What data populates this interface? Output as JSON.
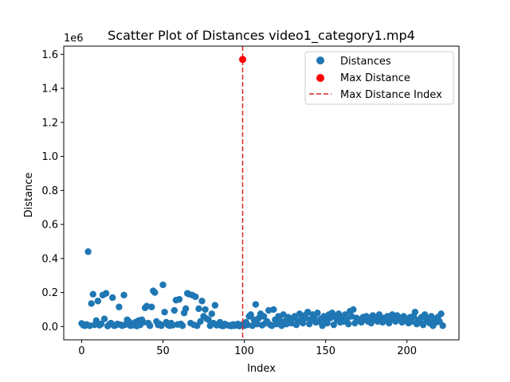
{
  "chart_data": {
    "type": "scatter",
    "title": "Scatter Plot of Distances video1_category1.mp4",
    "xlabel": "Index",
    "ylabel": "Distance",
    "y_offset_label": "1e6",
    "xlim": [
      -11,
      232
    ],
    "ylim": [
      -78000,
      1648000
    ],
    "x_ticks": [
      0,
      50,
      100,
      150,
      200
    ],
    "y_ticks": [
      0,
      200000,
      400000,
      600000,
      800000,
      1000000,
      1200000,
      1400000,
      1600000
    ],
    "x_tick_labels": [
      "0",
      "50",
      "100",
      "150",
      "200"
    ],
    "y_tick_labels": [
      "0.0",
      "0.2",
      "0.4",
      "0.6",
      "0.8",
      "1.0",
      "1.2",
      "1.4",
      "1.6"
    ],
    "grid": false,
    "legend_position": "top-right",
    "legend": [
      "Distances",
      "Max Distance",
      "Max Distance Index"
    ],
    "colors": {
      "distances": "#1f77b4",
      "max": "#ff0000",
      "vline": "#d62728"
    },
    "series": [
      {
        "name": "Distances",
        "points": [
          [
            0,
            18000
          ],
          [
            1,
            8000
          ],
          [
            2,
            5000
          ],
          [
            3,
            12000
          ],
          [
            4,
            440000
          ],
          [
            5,
            5000
          ],
          [
            6,
            135000
          ],
          [
            7,
            190000
          ],
          [
            8,
            10000
          ],
          [
            9,
            35000
          ],
          [
            10,
            150000
          ],
          [
            11,
            8000
          ],
          [
            12,
            15000
          ],
          [
            13,
            185000
          ],
          [
            14,
            45000
          ],
          [
            15,
            195000
          ],
          [
            16,
            3000
          ],
          [
            17,
            12000
          ],
          [
            18,
            20000
          ],
          [
            19,
            170000
          ],
          [
            20,
            5000
          ],
          [
            21,
            8000
          ],
          [
            22,
            15000
          ],
          [
            23,
            115000
          ],
          [
            24,
            10000
          ],
          [
            25,
            5000
          ],
          [
            26,
            185000
          ],
          [
            27,
            12000
          ],
          [
            28,
            40000
          ],
          [
            29,
            30000
          ],
          [
            30,
            5000
          ],
          [
            31,
            15000
          ],
          [
            32,
            8000
          ],
          [
            33,
            25000
          ],
          [
            34,
            3000
          ],
          [
            35,
            35000
          ],
          [
            36,
            10000
          ],
          [
            37,
            40000
          ],
          [
            38,
            25000
          ],
          [
            39,
            110000
          ],
          [
            40,
            120000
          ],
          [
            41,
            20000
          ],
          [
            42,
            5000
          ],
          [
            43,
            115000
          ],
          [
            44,
            210000
          ],
          [
            45,
            200000
          ],
          [
            46,
            30000
          ],
          [
            47,
            10000
          ],
          [
            48,
            15000
          ],
          [
            49,
            5000
          ],
          [
            50,
            245000
          ],
          [
            51,
            85000
          ],
          [
            52,
            25000
          ],
          [
            53,
            10000
          ],
          [
            54,
            5000
          ],
          [
            55,
            20000
          ],
          [
            56,
            8000
          ],
          [
            57,
            95000
          ],
          [
            58,
            155000
          ],
          [
            59,
            12000
          ],
          [
            60,
            160000
          ],
          [
            61,
            15000
          ],
          [
            62,
            5000
          ],
          [
            63,
            80000
          ],
          [
            64,
            105000
          ],
          [
            65,
            195000
          ],
          [
            66,
            190000
          ],
          [
            67,
            20000
          ],
          [
            68,
            185000
          ],
          [
            69,
            10000
          ],
          [
            70,
            175000
          ],
          [
            71,
            5000
          ],
          [
            72,
            105000
          ],
          [
            73,
            30000
          ],
          [
            74,
            150000
          ],
          [
            75,
            60000
          ],
          [
            76,
            100000
          ],
          [
            77,
            45000
          ],
          [
            78,
            40000
          ],
          [
            79,
            5000
          ],
          [
            80,
            75000
          ],
          [
            81,
            20000
          ],
          [
            82,
            125000
          ],
          [
            83,
            8000
          ],
          [
            84,
            12000
          ],
          [
            85,
            25000
          ],
          [
            86,
            5000
          ],
          [
            87,
            3000
          ],
          [
            88,
            15000
          ],
          [
            89,
            10000
          ],
          [
            90,
            8000
          ],
          [
            91,
            5000
          ],
          [
            92,
            3000
          ],
          [
            93,
            12000
          ],
          [
            94,
            5000
          ],
          [
            95,
            8000
          ],
          [
            96,
            15000
          ],
          [
            97,
            3000
          ],
          [
            98,
            10000
          ],
          [
            100,
            5000
          ],
          [
            101,
            25000
          ],
          [
            102,
            10000
          ],
          [
            103,
            60000
          ],
          [
            104,
            70000
          ],
          [
            105,
            5000
          ],
          [
            106,
            40000
          ],
          [
            107,
            130000
          ],
          [
            108,
            15000
          ],
          [
            109,
            50000
          ],
          [
            110,
            75000
          ],
          [
            111,
            8000
          ],
          [
            112,
            60000
          ],
          [
            113,
            20000
          ],
          [
            114,
            30000
          ],
          [
            115,
            95000
          ],
          [
            116,
            10000
          ],
          [
            117,
            5000
          ],
          [
            118,
            100000
          ],
          [
            119,
            40000
          ],
          [
            120,
            15000
          ],
          [
            121,
            60000
          ],
          [
            122,
            35000
          ],
          [
            123,
            5000
          ],
          [
            124,
            70000
          ],
          [
            125,
            30000
          ],
          [
            126,
            15000
          ],
          [
            127,
            55000
          ],
          [
            128,
            45000
          ],
          [
            129,
            20000
          ],
          [
            130,
            50000
          ],
          [
            131,
            60000
          ],
          [
            132,
            10000
          ],
          [
            133,
            35000
          ],
          [
            134,
            75000
          ],
          [
            135,
            40000
          ],
          [
            136,
            20000
          ],
          [
            137,
            65000
          ],
          [
            138,
            50000
          ],
          [
            139,
            85000
          ],
          [
            140,
            15000
          ],
          [
            141,
            40000
          ],
          [
            142,
            70000
          ],
          [
            143,
            55000
          ],
          [
            144,
            25000
          ],
          [
            145,
            80000
          ],
          [
            146,
            30000
          ],
          [
            147,
            45000
          ],
          [
            148,
            5000
          ],
          [
            149,
            60000
          ],
          [
            150,
            35000
          ],
          [
            151,
            20000
          ],
          [
            152,
            70000
          ],
          [
            153,
            50000
          ],
          [
            154,
            80000
          ],
          [
            155,
            10000
          ],
          [
            156,
            60000
          ],
          [
            157,
            40000
          ],
          [
            158,
            75000
          ],
          [
            159,
            25000
          ],
          [
            160,
            55000
          ],
          [
            161,
            30000
          ],
          [
            162,
            70000
          ],
          [
            163,
            45000
          ],
          [
            164,
            15000
          ],
          [
            165,
            90000
          ],
          [
            166,
            60000
          ],
          [
            167,
            100000
          ],
          [
            168,
            20000
          ],
          [
            169,
            50000
          ],
          [
            170,
            35000
          ],
          [
            171,
            40000
          ],
          [
            172,
            25000
          ],
          [
            173,
            55000
          ],
          [
            174,
            45000
          ],
          [
            175,
            60000
          ],
          [
            176,
            30000
          ],
          [
            177,
            50000
          ],
          [
            178,
            20000
          ],
          [
            179,
            65000
          ],
          [
            180,
            40000
          ],
          [
            181,
            55000
          ],
          [
            182,
            30000
          ],
          [
            183,
            70000
          ],
          [
            184,
            45000
          ],
          [
            185,
            25000
          ],
          [
            186,
            50000
          ],
          [
            187,
            35000
          ],
          [
            188,
            60000
          ],
          [
            189,
            20000
          ],
          [
            190,
            45000
          ],
          [
            191,
            70000
          ],
          [
            192,
            55000
          ],
          [
            193,
            30000
          ],
          [
            194,
            65000
          ],
          [
            195,
            40000
          ],
          [
            196,
            50000
          ],
          [
            197,
            25000
          ],
          [
            198,
            60000
          ],
          [
            199,
            35000
          ],
          [
            200,
            45000
          ],
          [
            201,
            20000
          ],
          [
            202,
            55000
          ],
          [
            203,
            30000
          ],
          [
            204,
            60000
          ],
          [
            205,
            85000
          ],
          [
            206,
            15000
          ],
          [
            207,
            40000
          ],
          [
            208,
            25000
          ],
          [
            209,
            55000
          ],
          [
            210,
            10000
          ],
          [
            211,
            70000
          ],
          [
            212,
            35000
          ],
          [
            213,
            45000
          ],
          [
            214,
            20000
          ],
          [
            215,
            60000
          ],
          [
            216,
            5000
          ],
          [
            217,
            40000
          ],
          [
            218,
            25000
          ],
          [
            219,
            55000
          ],
          [
            220,
            30000
          ],
          [
            221,
            75000
          ],
          [
            222,
            5000
          ]
        ]
      },
      {
        "name": "Max Distance",
        "points": [
          [
            99,
            1570000
          ]
        ]
      }
    ],
    "vline_x": 99
  }
}
